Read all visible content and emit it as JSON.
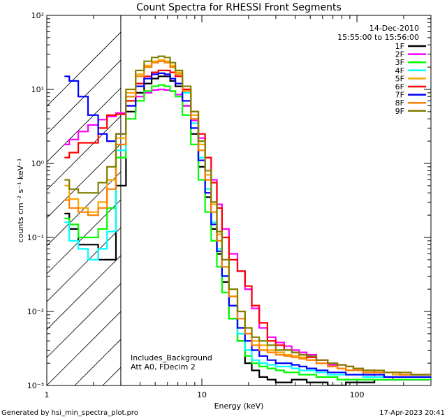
{
  "chart_data": {
    "type": "line",
    "title": "Count Spectra for RHESSI Front Segments",
    "xlabel": "Energy (keV)",
    "ylabel": "counts cm⁻² s⁻¹ keV⁻¹",
    "xscale": "log",
    "yscale": "log",
    "xlim": [
      1,
      300
    ],
    "ylim": [
      0.001,
      100
    ],
    "x_ticks": [
      "1",
      "10",
      "100"
    ],
    "y_ticks": [
      "10⁻³",
      "10⁻²",
      "10⁻¹",
      "10⁰",
      "10¹",
      "10²"
    ],
    "date": "14-Dec-2010",
    "time_range": "15:55:00 to 15:56:00",
    "legend_position": "top-right",
    "annotations": [
      "Includes_Background",
      "Att A0, FDecim 2"
    ],
    "excluded_region_keV": [
      1,
      3
    ],
    "footer_left": "Generated by hsi_min_spectra_plot.pro",
    "footer_right": "17-Apr-2023 20:41",
    "series": [
      {
        "name": "1F",
        "color": "#000000",
        "x": [
          1.3,
          1.5,
          1.7,
          2.0,
          2.3,
          2.6,
          3.0,
          3.5,
          4.0,
          4.5,
          5.0,
          5.5,
          6.0,
          6.5,
          7.0,
          8.0,
          9.0,
          10,
          11,
          12,
          13,
          14,
          16,
          18,
          20,
          22,
          25,
          28,
          32,
          36,
          40,
          45,
          50,
          60,
          70,
          80,
          90,
          100,
          120,
          140,
          160,
          180,
          200,
          250,
          300
        ],
        "values": [
          0.21,
          0.13,
          0.08,
          0.08,
          0.05,
          0.05,
          0.5,
          5,
          9,
          12,
          14,
          15,
          15,
          13,
          11,
          6,
          2.5,
          0.9,
          0.35,
          0.13,
          0.06,
          0.025,
          0.008,
          0.004,
          0.002,
          0.0016,
          0.0013,
          0.0012,
          0.0011,
          0.0011,
          0.0012,
          0.0012,
          0.0011,
          0.0011,
          0.001,
          0.001,
          0.0011,
          0.0011,
          0.0011,
          0.0012,
          0.0012,
          0.0012,
          0.0012,
          0.0012,
          0.0012
        ]
      },
      {
        "name": "2F",
        "color": "#ff00ff",
        "x": [
          1.3,
          1.5,
          1.7,
          2.0,
          2.3,
          2.6,
          3.0,
          3.5,
          4.0,
          4.5,
          5.0,
          5.5,
          6.0,
          6.5,
          7.0,
          8.0,
          9.0,
          10,
          11,
          12,
          13,
          14,
          16,
          18,
          20,
          22,
          25,
          28,
          32,
          36,
          40,
          45,
          50,
          60,
          70,
          80,
          90,
          100,
          120,
          140,
          160,
          180,
          200,
          250,
          300
        ],
        "values": [
          1.8,
          2.1,
          2.7,
          3.3,
          3.9,
          4.3,
          4.8,
          6,
          8,
          9,
          9.8,
          10,
          9.8,
          9.4,
          8.5,
          6,
          3.8,
          2.2,
          1.2,
          0.6,
          0.28,
          0.13,
          0.06,
          0.035,
          0.02,
          0.011,
          0.006,
          0.0045,
          0.0038,
          0.0034,
          0.003,
          0.0028,
          0.0026,
          0.0022,
          0.0019,
          0.0017,
          0.0016,
          0.0016,
          0.0014,
          0.0013,
          0.0013,
          0.0012,
          0.0012,
          0.0012,
          0.0012
        ]
      },
      {
        "name": "3F",
        "color": "#00ff00",
        "x": [
          1.3,
          1.5,
          1.7,
          2.0,
          2.3,
          2.6,
          3.0,
          3.5,
          4.0,
          4.5,
          5.0,
          5.5,
          6.0,
          6.5,
          7.0,
          8.0,
          9.0,
          10,
          11,
          12,
          13,
          14,
          16,
          18,
          20,
          22,
          25,
          28,
          32,
          36,
          40,
          45,
          50,
          60,
          70,
          80,
          90,
          100,
          120,
          140,
          160,
          180,
          200,
          250,
          300
        ],
        "values": [
          0.18,
          0.15,
          0.1,
          0.1,
          0.13,
          0.25,
          1.2,
          4,
          7,
          9.5,
          11,
          11.5,
          11,
          9.5,
          8,
          4.5,
          1.8,
          0.6,
          0.22,
          0.09,
          0.04,
          0.018,
          0.008,
          0.004,
          0.0025,
          0.002,
          0.0018,
          0.0017,
          0.0016,
          0.0015,
          0.0015,
          0.0014,
          0.0014,
          0.0013,
          0.0013,
          0.0012,
          0.0012,
          0.0012,
          0.0012,
          0.0012,
          0.0012,
          0.0012,
          0.0012,
          0.0012,
          0.0012
        ]
      },
      {
        "name": "4F",
        "color": "#00ffff",
        "x": [
          1.3,
          1.5,
          1.7,
          2.0,
          2.3,
          2.6,
          3.0,
          3.5,
          4.0,
          4.5,
          5.0,
          5.5,
          6.0,
          6.5,
          7.0,
          8.0,
          9.0,
          10,
          11,
          12,
          13,
          14,
          16,
          18,
          20,
          22,
          25,
          28,
          32,
          36,
          40,
          45,
          50,
          60,
          70,
          80,
          90,
          100,
          120,
          140,
          160,
          180,
          200,
          250,
          300
        ],
        "values": [
          0.16,
          0.09,
          0.07,
          0.05,
          0.07,
          0.12,
          1.5,
          8,
          15,
          20,
          23,
          24,
          23,
          20,
          16,
          9,
          3.5,
          1.2,
          0.45,
          0.16,
          0.07,
          0.03,
          0.012,
          0.005,
          0.003,
          0.0022,
          0.002,
          0.0019,
          0.0018,
          0.0018,
          0.0017,
          0.0016,
          0.0016,
          0.0015,
          0.0014,
          0.0014,
          0.0014,
          0.0014,
          0.0013,
          0.0013,
          0.0013,
          0.0013,
          0.0013,
          0.0013,
          0.0013
        ]
      },
      {
        "name": "5F",
        "color": "#ffa500",
        "x": [
          1.3,
          1.5,
          1.7,
          2.0,
          2.3,
          2.6,
          3.0,
          3.5,
          4.0,
          4.5,
          5.0,
          5.5,
          6.0,
          6.5,
          7.0,
          8.0,
          9.0,
          10,
          11,
          12,
          13,
          14,
          16,
          18,
          20,
          22,
          25,
          28,
          32,
          36,
          40,
          45,
          50,
          60,
          70,
          80,
          90,
          100,
          120,
          140,
          160,
          180,
          200,
          250,
          300
        ],
        "values": [
          0.5,
          0.33,
          0.25,
          0.22,
          0.3,
          0.6,
          2.2,
          9,
          16,
          21,
          24,
          25,
          24,
          21,
          17,
          10,
          4.5,
          1.8,
          0.7,
          0.28,
          0.11,
          0.05,
          0.02,
          0.01,
          0.006,
          0.004,
          0.0035,
          0.003,
          0.0028,
          0.0026,
          0.0025,
          0.0024,
          0.0022,
          0.002,
          0.0018,
          0.0017,
          0.0016,
          0.0016,
          0.0015,
          0.0015,
          0.0015,
          0.0014,
          0.0014,
          0.0014,
          0.0014
        ]
      },
      {
        "name": "6F",
        "color": "#ff0000",
        "x": [
          1.3,
          1.5,
          1.7,
          2.0,
          2.3,
          2.6,
          3.0,
          3.5,
          4.0,
          4.5,
          5.0,
          5.5,
          6.0,
          6.5,
          7.0,
          8.0,
          9.0,
          10,
          11,
          12,
          13,
          14,
          16,
          18,
          20,
          22,
          25,
          28,
          32,
          36,
          40,
          45,
          50,
          60,
          70,
          80,
          90,
          100,
          120,
          140,
          160,
          180,
          200,
          250,
          300
        ],
        "values": [
          1.2,
          1.4,
          1.9,
          1.9,
          3,
          4.5,
          4.6,
          7,
          12,
          15,
          17,
          18,
          18,
          17,
          15,
          10,
          5,
          2.5,
          1.2,
          0.55,
          0.25,
          0.1,
          0.05,
          0.035,
          0.022,
          0.012,
          0.007,
          0.004,
          0.0035,
          0.003,
          0.0028,
          0.0026,
          0.0024,
          0.0022,
          0.002,
          0.0019,
          0.0018,
          0.0017,
          0.0016,
          0.0015,
          0.0015,
          0.0015,
          0.0014,
          0.0014,
          0.0014
        ]
      },
      {
        "name": "7F",
        "color": "#0000ff",
        "x": [
          1.3,
          1.5,
          1.7,
          2.0,
          2.3,
          2.6,
          3.0,
          3.5,
          4.0,
          4.5,
          5.0,
          5.5,
          6.0,
          6.5,
          7.0,
          8.0,
          9.0,
          10,
          11,
          12,
          13,
          14,
          16,
          18,
          20,
          22,
          25,
          28,
          32,
          36,
          40,
          45,
          50,
          60,
          70,
          80,
          90,
          100,
          120,
          140,
          160,
          180,
          200,
          250,
          300
        ],
        "values": [
          15,
          13,
          8,
          4.5,
          2.5,
          2,
          2.5,
          6,
          11,
          14,
          16,
          16.5,
          16,
          14,
          12,
          7,
          3,
          1.1,
          0.4,
          0.15,
          0.065,
          0.03,
          0.012,
          0.006,
          0.004,
          0.003,
          0.0025,
          0.0022,
          0.002,
          0.002,
          0.0019,
          0.0018,
          0.0017,
          0.0016,
          0.0015,
          0.0015,
          0.0014,
          0.0014,
          0.0014,
          0.0014,
          0.0013,
          0.0013,
          0.0013,
          0.0013,
          0.0013
        ]
      },
      {
        "name": "8F",
        "color": "#ff8000",
        "x": [
          1.3,
          1.5,
          1.7,
          2.0,
          2.3,
          2.6,
          3.0,
          3.5,
          4.0,
          4.5,
          5.0,
          5.5,
          6.0,
          6.5,
          7.0,
          8.0,
          9.0,
          10,
          11,
          12,
          13,
          14,
          16,
          18,
          20,
          22,
          25,
          28,
          32,
          36,
          40,
          45,
          50,
          60,
          70,
          80,
          90,
          100,
          120,
          140,
          160,
          180,
          200,
          250,
          300
        ],
        "values": [
          0.32,
          0.25,
          0.22,
          0.2,
          0.25,
          0.45,
          1.8,
          8,
          15,
          20,
          23,
          24,
          23,
          20,
          16,
          9.5,
          4,
          1.5,
          0.6,
          0.22,
          0.09,
          0.04,
          0.016,
          0.008,
          0.005,
          0.0035,
          0.003,
          0.0028,
          0.0026,
          0.0025,
          0.0024,
          0.0023,
          0.0022,
          0.002,
          0.0018,
          0.0017,
          0.0016,
          0.0016,
          0.0015,
          0.0015,
          0.0015,
          0.0015,
          0.0014,
          0.0014,
          0.0014
        ]
      },
      {
        "name": "9F",
        "color": "#808000",
        "x": [
          1.3,
          1.5,
          1.7,
          2.0,
          2.3,
          2.6,
          3.0,
          3.5,
          4.0,
          4.5,
          5.0,
          5.5,
          6.0,
          6.5,
          7.0,
          8.0,
          9.0,
          10,
          11,
          12,
          13,
          14,
          16,
          18,
          20,
          22,
          25,
          28,
          32,
          36,
          40,
          45,
          50,
          60,
          70,
          80,
          90,
          100,
          120,
          140,
          160,
          180,
          200,
          250,
          300
        ],
        "values": [
          0.6,
          0.45,
          0.4,
          0.4,
          0.55,
          0.9,
          2.5,
          10,
          18,
          24,
          27,
          28,
          27,
          23,
          18,
          11,
          5,
          2,
          0.8,
          0.3,
          0.12,
          0.05,
          0.02,
          0.01,
          0.006,
          0.0045,
          0.004,
          0.0035,
          0.003,
          0.003,
          0.0028,
          0.0026,
          0.0025,
          0.0022,
          0.002,
          0.0019,
          0.0018,
          0.0017,
          0.0016,
          0.0016,
          0.0015,
          0.0015,
          0.0015,
          0.0014,
          0.0014
        ]
      }
    ]
  }
}
